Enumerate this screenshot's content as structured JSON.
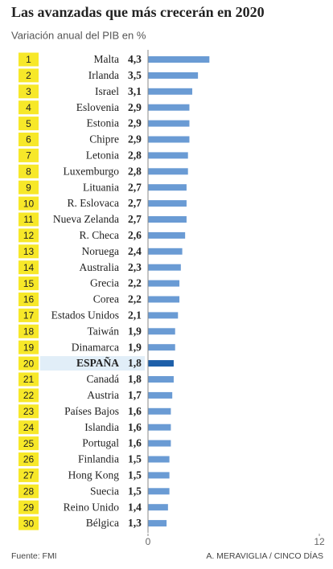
{
  "chart_data": {
    "type": "hbar",
    "title": "Las avanzadas que más crecerán en 2020",
    "subtitle": "Variación anual del PIB en %",
    "ranks": [
      1,
      2,
      3,
      4,
      5,
      6,
      7,
      8,
      9,
      10,
      11,
      12,
      13,
      14,
      15,
      16,
      17,
      18,
      19,
      20,
      21,
      22,
      23,
      24,
      25,
      26,
      27,
      28,
      29,
      30
    ],
    "categories": [
      "Malta",
      "Irlanda",
      "Israel",
      "Eslovenia",
      "Estonia",
      "Chipre",
      "Letonia",
      "Luxemburgo",
      "Lituania",
      "R. Eslovaca",
      "Nueva Zelanda",
      "R. Checa",
      "Noruega",
      "Australia",
      "Grecia",
      "Corea",
      "Estados Unidos",
      "Taiwán",
      "Dinamarca",
      "ESPAÑA",
      "Canadá",
      "Austria",
      "Países Bajos",
      "Islandia",
      "Portugal",
      "Finlandia",
      "Hong Kong",
      "Suecia",
      "Reino Unido",
      "Bélgica"
    ],
    "values": [
      4.3,
      3.5,
      3.1,
      2.9,
      2.9,
      2.9,
      2.8,
      2.8,
      2.7,
      2.7,
      2.7,
      2.6,
      2.4,
      2.3,
      2.2,
      2.2,
      2.1,
      1.9,
      1.9,
      1.8,
      1.8,
      1.7,
      1.6,
      1.6,
      1.6,
      1.5,
      1.5,
      1.5,
      1.4,
      1.3
    ],
    "value_labels": [
      "4,3",
      "3,5",
      "3,1",
      "2,9",
      "2,9",
      "2,9",
      "2,8",
      "2,8",
      "2,7",
      "2,7",
      "2,7",
      "2,6",
      "2,4",
      "2,3",
      "2,2",
      "2,2",
      "2,1",
      "1,9",
      "1,9",
      "1,8",
      "1,8",
      "1,7",
      "1,6",
      "1,6",
      "1,6",
      "1,5",
      "1,5",
      "1,5",
      "1,4",
      "1,3"
    ],
    "colors": [
      "#6a9bd4",
      "#6a9bd4",
      "#6a9bd4",
      "#6a9bd4",
      "#6a9bd4",
      "#6a9bd4",
      "#6a9bd4",
      "#6a9bd4",
      "#6a9bd4",
      "#6a9bd4",
      "#6a9bd4",
      "#6a9bd4",
      "#6a9bd4",
      "#6a9bd4",
      "#6a9bd4",
      "#6a9bd4",
      "#6a9bd4",
      "#6a9bd4",
      "#6a9bd4",
      "#1d5fa9",
      "#6a9bd4",
      "#6a9bd4",
      "#6a9bd4",
      "#6a9bd4",
      "#6a9bd4",
      "#6a9bd4",
      "#6a9bd4",
      "#6a9bd4",
      "#6a9bd4",
      "#6a9bd4"
    ],
    "xlim": [
      0,
      12
    ],
    "xticks": [
      0,
      12
    ],
    "source": "Fuente: FMI",
    "credit": "A. MERAVIGLIA / CINCO DÍAS"
  }
}
